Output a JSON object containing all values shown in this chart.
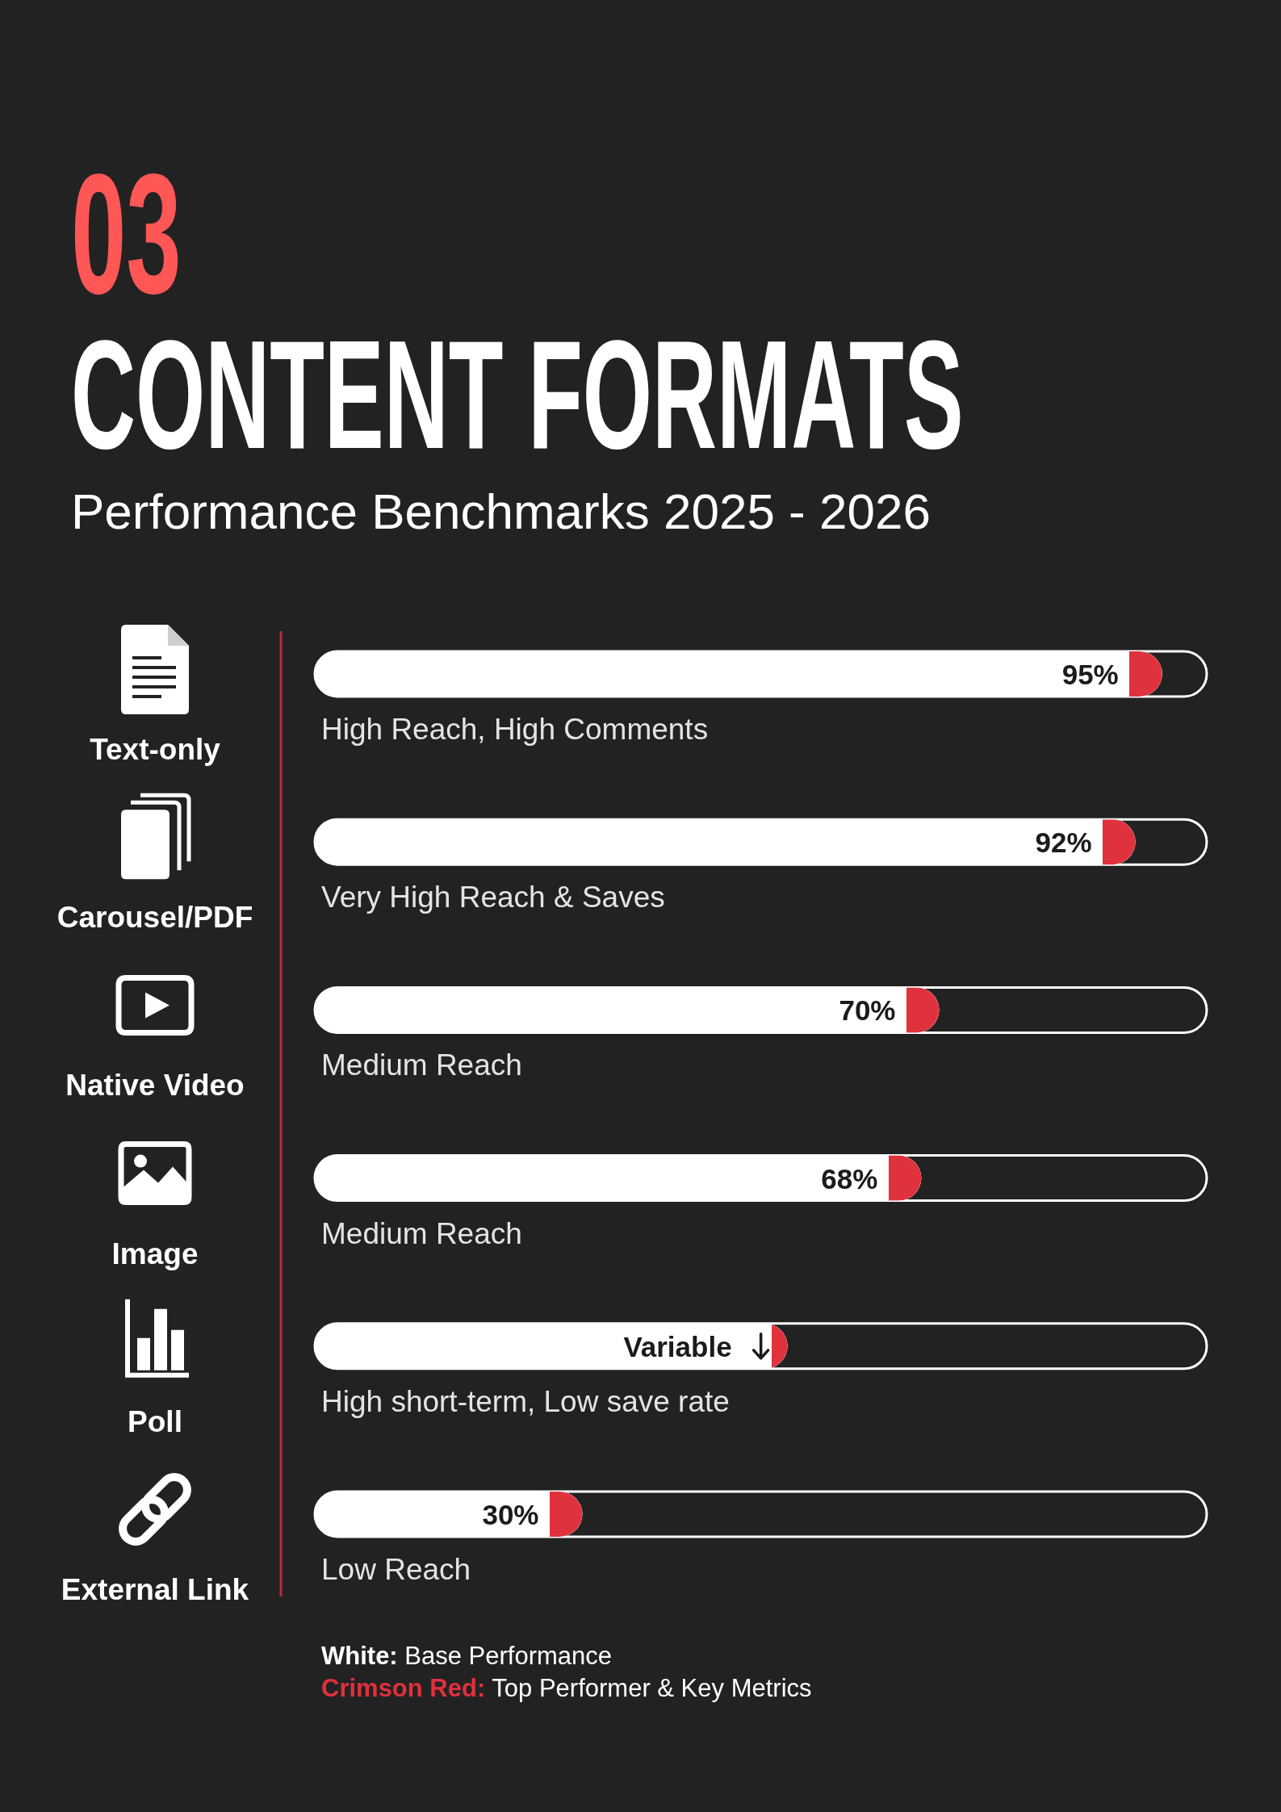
{
  "chart_data": {
    "type": "bar",
    "orientation": "horizontal",
    "title": "03 CONTENT FORMATS",
    "subtitle": "Performance Benchmarks 2025 - 2026",
    "categories": [
      "Text-only",
      "Carousel/PDF",
      "Native Video",
      "Image",
      "Poll",
      "External Link"
    ],
    "values": [
      95,
      92,
      70,
      68,
      53,
      30
    ],
    "value_labels": [
      "95%",
      "92%",
      "70%",
      "68%",
      "Variable",
      "30%"
    ],
    "color": "#ffffff",
    "xlim": [
      0,
      100
    ],
    "tick_labels": "y",
    "annotations": [
      "High Reach, High Comments",
      "Very High Reach & Saves",
      "Medium Reach",
      "Medium Reach",
      "High short-term, Low save rate",
      "Low Reach",
      "White: Base Performance",
      "Crimson Red: Top Performer & Key Metrics"
    ]
  }
}
